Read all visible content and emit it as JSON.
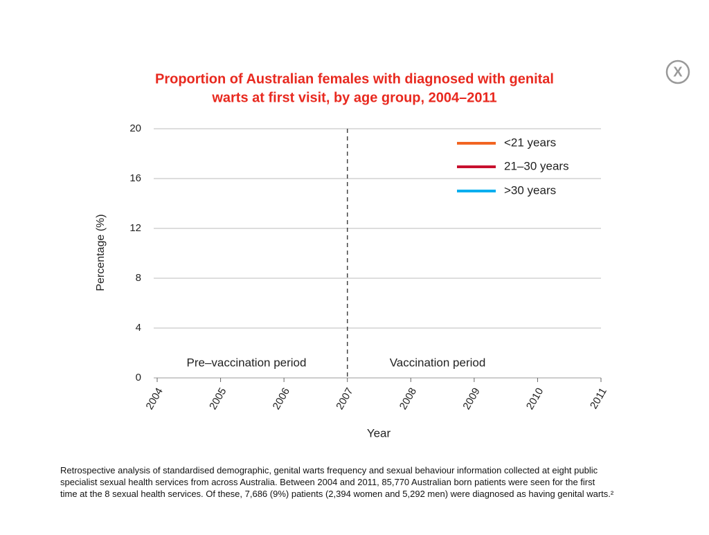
{
  "chart_data": {
    "type": "line",
    "title": [
      "Proportion of Australian females with diagnosed with genital",
      "warts at first visit, by age group, 2004–2011"
    ],
    "xlabel": "Year",
    "ylabel": "Percentage (%)",
    "x": [
      2004,
      2005,
      2006,
      2007,
      2008,
      2009,
      2010,
      2011
    ],
    "series": [
      {
        "name": "<21 years",
        "color": "#f26522",
        "values": [
          null,
          null,
          null,
          null,
          null,
          null,
          null,
          null
        ]
      },
      {
        "name": "21–30 years",
        "color": "#c8102e",
        "values": [
          null,
          null,
          null,
          null,
          null,
          null,
          null,
          null
        ]
      },
      {
        "name": ">30 years",
        "color": "#00aeef",
        "values": [
          null,
          null,
          null,
          null,
          null,
          null,
          null,
          null
        ]
      }
    ],
    "xlim": [
      2004,
      2011
    ],
    "xticks": [
      2004,
      2005,
      2006,
      2007,
      2008,
      2009,
      2010,
      2011
    ],
    "ylim": [
      0,
      20
    ],
    "yticks": [
      0,
      4,
      8,
      12,
      16,
      20
    ],
    "grid": true,
    "legend": "upper right",
    "vline": {
      "x": 2007
    },
    "annotations": [
      "Pre–vaccination period",
      "Vaccination period"
    ]
  },
  "footnote": [
    "Retrospective analysis of standardised demographic, genital warts frequency and sexual behaviour information collected at eight public",
    "specialist sexual health services from across Australia. Between 2004 and 2011, 85,770 Australian born patients were seen for the first",
    "time at the 8 sexual health services. Of these, 7,686 (9%) patients (2,394 women and 5,292 men) were diagnosed as having genital warts.²"
  ],
  "close_button": "X"
}
